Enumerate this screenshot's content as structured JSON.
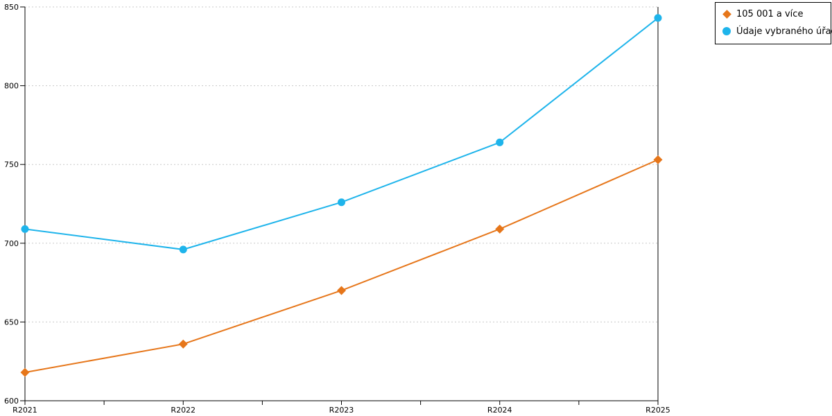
{
  "chart_data": {
    "type": "line",
    "categories": [
      "R2021",
      "R2022",
      "R2023",
      "R2024",
      "R2025"
    ],
    "series": [
      {
        "name": "105 001 a více",
        "marker": "diamond",
        "color": "#e6761a",
        "values": [
          618,
          636,
          670,
          709,
          753
        ]
      },
      {
        "name": "Údaje vybraného úřadu",
        "marker": "circle",
        "color": "#1eb4eb",
        "values": [
          709,
          696,
          726,
          764,
          843
        ]
      }
    ],
    "title": "",
    "xlabel": "",
    "ylabel": "",
    "ylim": [
      600,
      850
    ],
    "yticks": [
      600,
      650,
      700,
      750,
      800,
      850
    ],
    "grid": "horizontal-dashed",
    "legend_position": "top-right"
  },
  "colors": {
    "axis": "#000000",
    "gridline": "#c8c8c8",
    "background": "#ffffff",
    "text": "#000000"
  }
}
